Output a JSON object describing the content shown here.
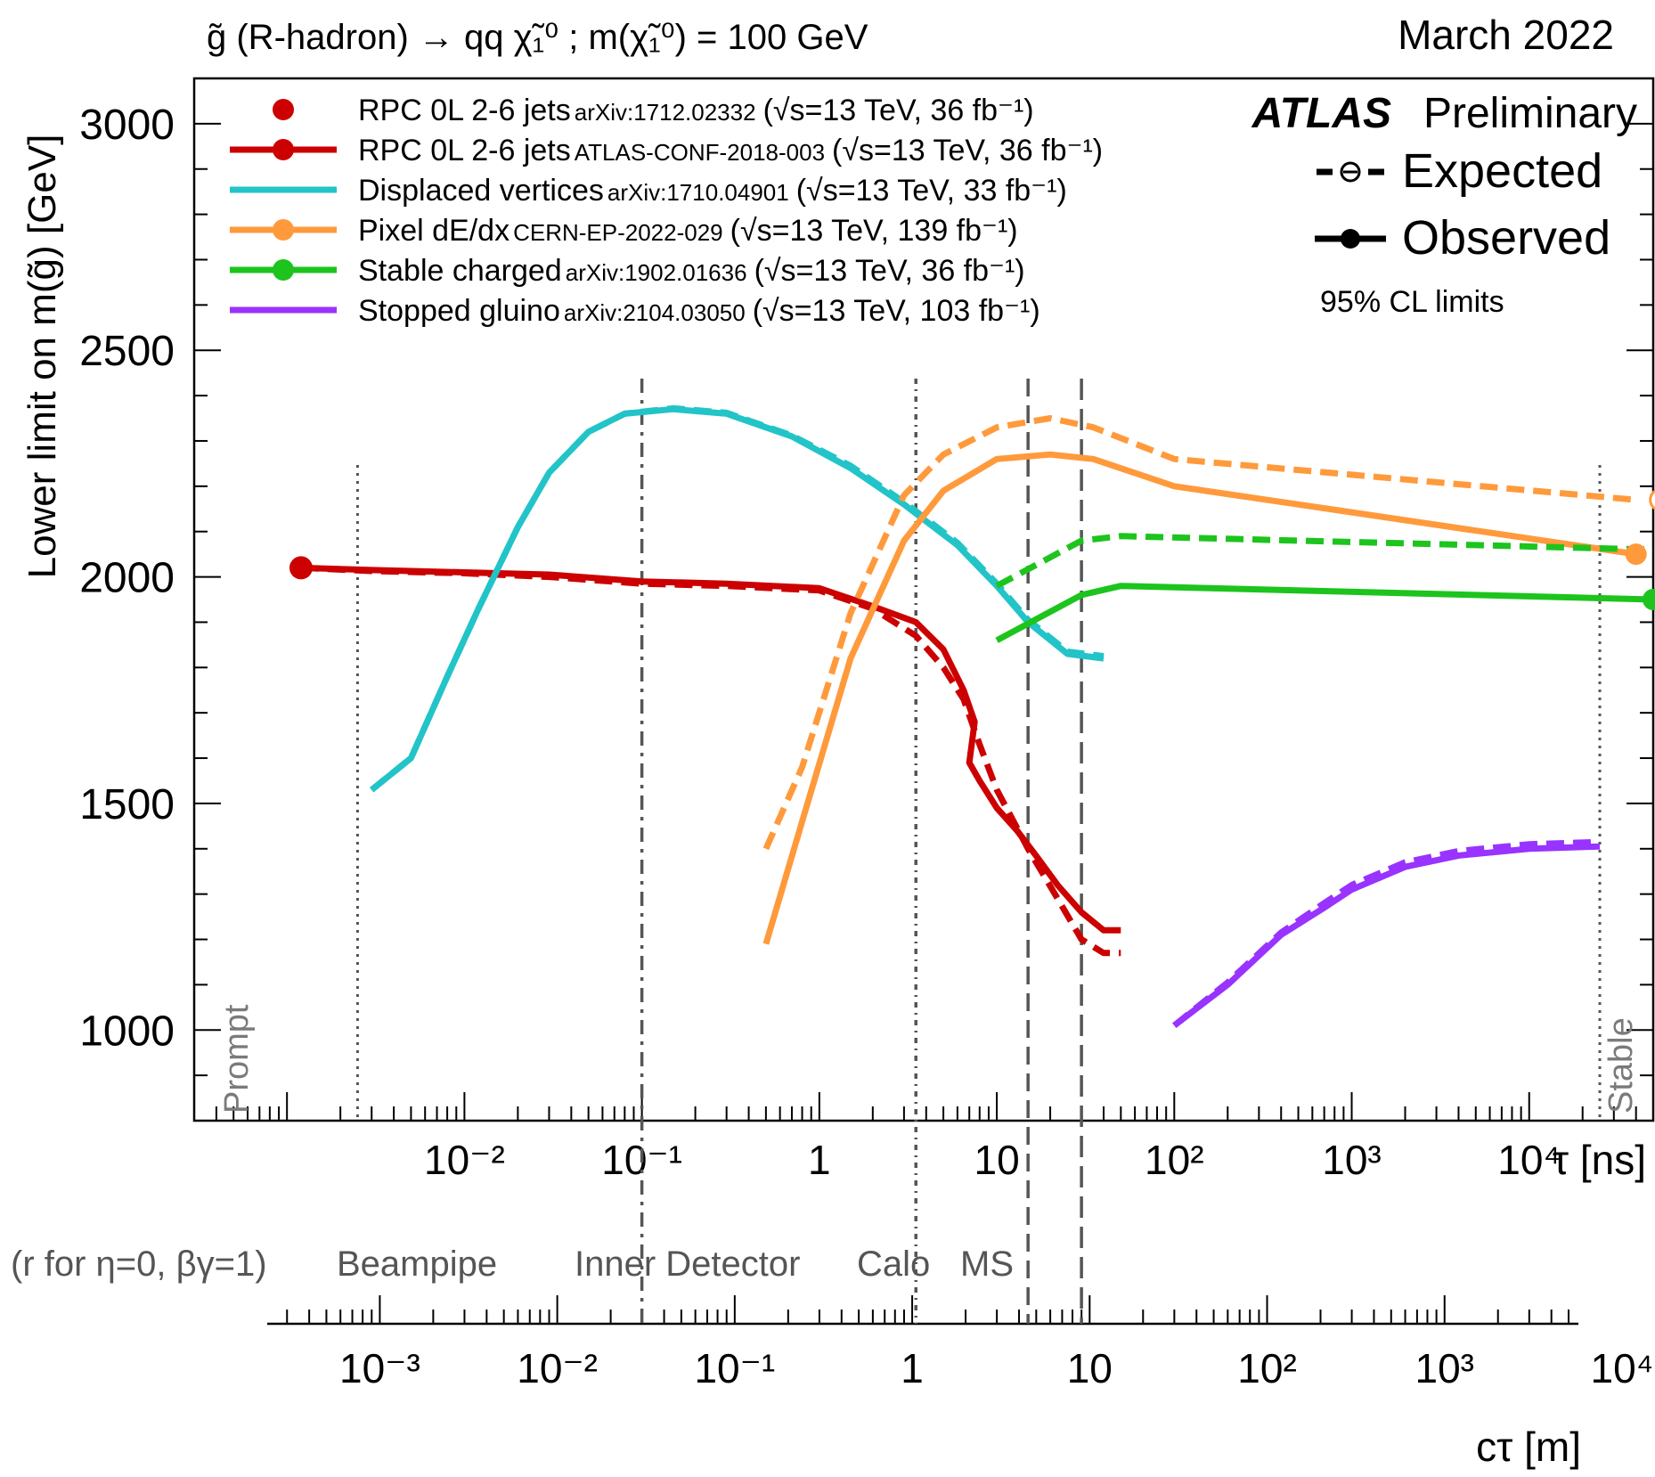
{
  "header": {
    "process": "g̃ (R-hadron) → qq χ̃₁⁰ ; m(χ̃₁⁰) = 100 GeV",
    "date": "March 2022"
  },
  "experiment": {
    "name": "ATLAS",
    "status": "Preliminary",
    "expected_label": "Expected",
    "observed_label": "Observed",
    "cl_note": "95% CL limits"
  },
  "detector_scale": {
    "note": "(r for η=0, βγ=1)",
    "regions": [
      "Beampipe",
      "Inner Detector",
      "Calo",
      "MS"
    ]
  },
  "region_labels": {
    "prompt": "Prompt",
    "stable": "Stable"
  },
  "chart_data": {
    "type": "line",
    "title": "g̃ (R-hadron) → qq χ̃₁⁰ ; m(χ̃₁⁰) = 100 GeV",
    "ylabel": "Lower limit on m(g̃) [GeV]",
    "xlabel": "τ [ns]",
    "x2label": "cτ [m]",
    "xscale": "log",
    "xlim": [
      0.0003,
      50000
    ],
    "ylim": [
      800,
      3100
    ],
    "y_ticks": [
      1000,
      1500,
      2000,
      2500,
      3000
    ],
    "y_tick_labels": [
      "1000",
      "1500",
      "2000",
      "2500",
      "3000"
    ],
    "x_ticks": [
      0.01,
      0.1,
      1,
      10,
      100,
      1000,
      10000
    ],
    "x_tick_labels": [
      "10⁻²",
      "10⁻¹",
      "1",
      "10",
      "10²",
      "10³",
      "10⁴"
    ],
    "x2_ticks": [
      0.001,
      0.01,
      0.1,
      1,
      10,
      100,
      1000,
      10000
    ],
    "x2_tick_labels": [
      "10⁻³",
      "10⁻²",
      "10⁻¹",
      "1",
      "10",
      "10²",
      "10³",
      "10⁴"
    ],
    "region_boundaries_ns": [
      0.1,
      3.5,
      15,
      30
    ],
    "prompt_stable_bounds_ns": [
      0.0025,
      25000
    ],
    "legend_position": "top-left",
    "series": [
      {
        "name": "RPC 0L 2-6 jets",
        "ref": "arXiv:1712.02332",
        "energy": "(√s=13 TeV, 36 fb⁻¹)",
        "color": "#cc0000",
        "style": "point",
        "points": [
          {
            "x": 0.0012,
            "y": 2020
          }
        ]
      },
      {
        "name": "RPC 0L 2-6 jets",
        "ref": "ATLAS-CONF-2018-003",
        "energy": "(√s=13 TeV, 36 fb⁻¹)",
        "color": "#cc0000",
        "style": "line",
        "observed": {
          "x": [
            0.0012,
            0.003,
            0.01,
            0.03,
            0.1,
            0.3,
            1,
            2,
            3.5,
            5,
            6.5,
            7.5,
            7,
            8,
            10,
            13,
            17,
            22,
            30,
            40,
            50
          ],
          "y": [
            2020,
            2015,
            2010,
            2005,
            1990,
            1985,
            1975,
            1935,
            1900,
            1840,
            1750,
            1680,
            1590,
            1550,
            1490,
            1440,
            1380,
            1320,
            1260,
            1220,
            1220
          ]
        },
        "expected": {
          "x": [
            0.0012,
            0.003,
            0.01,
            0.03,
            0.1,
            0.3,
            1,
            2,
            3.5,
            5,
            6.5,
            8,
            10,
            15,
            22,
            30,
            40,
            50
          ],
          "y": [
            2020,
            2013,
            2008,
            2000,
            1985,
            1980,
            1970,
            1930,
            1870,
            1800,
            1730,
            1630,
            1530,
            1400,
            1290,
            1200,
            1170,
            1170
          ]
        }
      },
      {
        "name": "Displaced vertices",
        "ref": "arXiv:1710.04901",
        "energy": "(√s=13 TeV, 33 fb⁻¹)",
        "color": "#22c4c8",
        "style": "line",
        "observed": {
          "x": [
            0.003,
            0.005,
            0.008,
            0.012,
            0.02,
            0.03,
            0.05,
            0.08,
            0.15,
            0.3,
            0.7,
            1.5,
            3,
            6,
            10,
            15,
            25,
            40
          ],
          "y": [
            1530,
            1600,
            1780,
            1930,
            2110,
            2230,
            2320,
            2360,
            2370,
            2360,
            2310,
            2240,
            2160,
            2070,
            1980,
            1900,
            1830,
            1820
          ]
        },
        "expected": {
          "x": [
            0.003,
            0.005,
            0.008,
            0.012,
            0.02,
            0.03,
            0.05,
            0.08,
            0.15,
            0.3,
            0.7,
            1.5,
            3,
            6,
            10,
            15,
            25,
            40
          ],
          "y": [
            1530,
            1600,
            1780,
            1930,
            2110,
            2230,
            2320,
            2360,
            2372,
            2362,
            2312,
            2245,
            2165,
            2075,
            1985,
            1905,
            1835,
            1825
          ]
        }
      },
      {
        "name": "Pixel dE/dx",
        "ref": "CERN-EP-2022-029",
        "energy": "(√s=13 TeV, 139 fb⁻¹)",
        "color": "#ff9a3c",
        "style": "line",
        "observed": {
          "x": [
            0.5,
            0.8,
            1.5,
            3,
            5,
            10,
            20,
            35,
            100,
            40000
          ],
          "y": [
            1190,
            1460,
            1820,
            2080,
            2190,
            2260,
            2270,
            2260,
            2200,
            2050
          ]
        },
        "expected": {
          "x": [
            0.5,
            0.8,
            1.5,
            3,
            5,
            10,
            20,
            35,
            100,
            40000
          ],
          "y": [
            1400,
            1580,
            1920,
            2180,
            2270,
            2330,
            2350,
            2330,
            2260,
            2170
          ]
        },
        "observed_marker": {
          "x": 40000,
          "y": 2050
        },
        "expected_marker": {
          "x": 40000,
          "y": 2170
        }
      },
      {
        "name": "Stable charged",
        "ref": "arXiv:1902.01636",
        "energy": "(√s=13 TeV, 36 fb⁻¹)",
        "color": "#1dc41d",
        "style": "line",
        "observed": {
          "x": [
            10,
            30,
            50,
            50000
          ],
          "y": [
            1860,
            1960,
            1980,
            1950
          ]
        },
        "expected": {
          "x": [
            10,
            30,
            50,
            50000
          ],
          "y": [
            1980,
            2080,
            2090,
            2060
          ]
        },
        "observed_marker": {
          "x": 50000,
          "y": 1950
        },
        "expected_marker": {
          "x": 50000,
          "y": 2060
        }
      },
      {
        "name": "Stopped gluino",
        "ref": "arXiv:2104.03050",
        "energy": "(√s=13 TeV, 103 fb⁻¹)",
        "color": "#9933ff",
        "style": "line",
        "observed": {
          "x": [
            100,
            200,
            400,
            700,
            1000,
            2000,
            4000,
            10000,
            25000
          ],
          "y": [
            1010,
            1100,
            1210,
            1270,
            1310,
            1360,
            1385,
            1400,
            1405
          ]
        },
        "expected": {
          "x": [
            100,
            200,
            400,
            700,
            1000,
            2000,
            4000,
            10000,
            25000
          ],
          "y": [
            1010,
            1105,
            1215,
            1280,
            1320,
            1370,
            1395,
            1410,
            1415
          ]
        }
      }
    ]
  }
}
